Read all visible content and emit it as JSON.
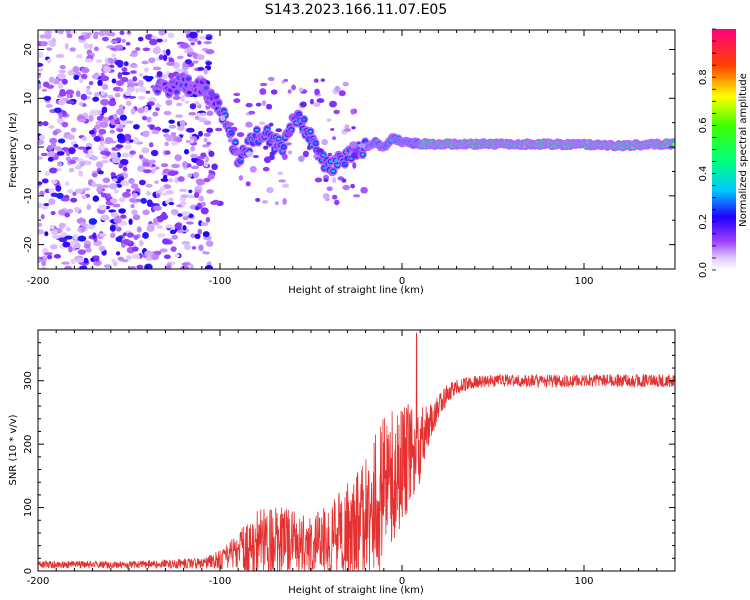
{
  "chart_data": [
    {
      "type": "heatmap",
      "title": "S143.2023.166.11.07.E05",
      "xlabel": "Height of straight line (km)",
      "ylabel": "Frequency (Hz)",
      "xlim": [
        -200,
        150
      ],
      "ylim": [
        -25,
        24
      ],
      "xticks": [
        -200,
        -100,
        0,
        100
      ],
      "yticks": [
        -20,
        -10,
        0,
        10,
        20
      ],
      "colorbar": {
        "label": "Normalized spectral amplitude",
        "range": [
          0,
          1
        ],
        "ticks": [
          0.0,
          0.2,
          0.4,
          0.6,
          0.8
        ]
      },
      "ridge": {
        "description": "dominant frequency track",
        "x": [
          -130,
          -120,
          -110,
          -105,
          -100,
          -95,
          -90,
          -85,
          -80,
          -75,
          -70,
          -65,
          -60,
          -55,
          -50,
          -45,
          -40,
          -35,
          -30,
          -25,
          -20,
          -15,
          -10,
          -5,
          0,
          5,
          10,
          20,
          40,
          60,
          80,
          100,
          120,
          140,
          150
        ],
        "y": [
          12,
          13,
          12,
          10,
          8,
          3,
          -2,
          0,
          2,
          3,
          1,
          0,
          6,
          5,
          2,
          -2,
          -4,
          -3,
          -2,
          -1,
          0,
          1,
          0,
          2,
          1,
          0.8,
          0.7,
          0.6,
          0.6,
          0.6,
          0.6,
          0.5,
          0.3,
          0.6,
          0.6
        ]
      }
    },
    {
      "type": "line",
      "xlabel": "Height of straight line (km)",
      "ylabel": "SNR (10 * v/v)",
      "xlim": [
        -200,
        150
      ],
      "ylim": [
        0,
        380
      ],
      "xticks": [
        -200,
        -100,
        0,
        100
      ],
      "yticks": [
        0,
        100,
        200,
        300
      ],
      "color": "#e53030",
      "envelope": {
        "x": [
          -200,
          -150,
          -110,
          -100,
          -90,
          -80,
          -70,
          -60,
          -50,
          -40,
          -30,
          -25,
          -20,
          -15,
          -10,
          -5,
          0,
          5,
          10,
          15,
          20,
          25,
          30,
          40,
          50,
          100,
          150
        ],
        "baseline": [
          10,
          10,
          12,
          18,
          30,
          45,
          50,
          45,
          40,
          50,
          60,
          70,
          80,
          100,
          130,
          150,
          170,
          180,
          200,
          230,
          260,
          280,
          290,
          298,
          300,
          300,
          300
        ],
        "spread": [
          6,
          6,
          8,
          15,
          30,
          50,
          55,
          50,
          45,
          60,
          80,
          90,
          100,
          120,
          120,
          110,
          100,
          80,
          60,
          30,
          20,
          15,
          12,
          10,
          10,
          10,
          10
        ]
      },
      "peak": {
        "x": 8,
        "y": 375
      }
    }
  ]
}
